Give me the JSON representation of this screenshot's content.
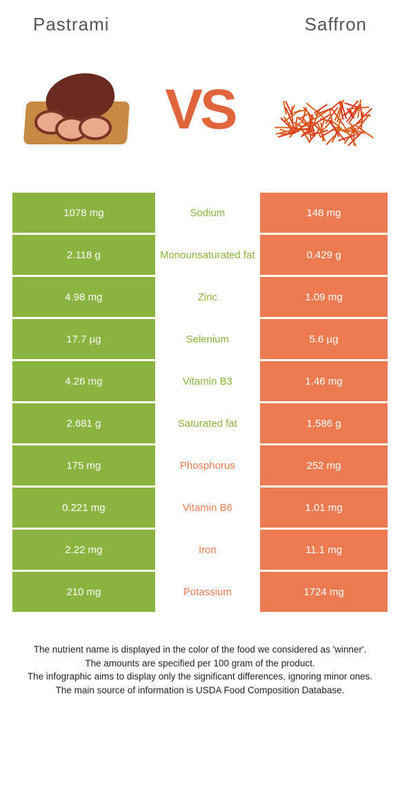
{
  "header": {
    "left": "Pastrami",
    "right": "Saffron"
  },
  "vs": "VS",
  "colors": {
    "left_bg": "#8bb33f",
    "right_bg": "#ed7b52",
    "mid_left_text": "#8bb33f",
    "mid_right_text": "#ed7b52"
  },
  "rows": [
    {
      "left": "1078 mg",
      "label": "Sodium",
      "right": "148 mg",
      "winner": "left"
    },
    {
      "left": "2.118 g",
      "label": "Monounsaturated fat",
      "right": "0.429 g",
      "winner": "left"
    },
    {
      "left": "4.98 mg",
      "label": "Zinc",
      "right": "1.09 mg",
      "winner": "left"
    },
    {
      "left": "17.7 µg",
      "label": "Selenium",
      "right": "5.6 µg",
      "winner": "left"
    },
    {
      "left": "4.26 mg",
      "label": "Vitamin B3",
      "right": "1.46 mg",
      "winner": "left"
    },
    {
      "left": "2.681 g",
      "label": "Saturated fat",
      "right": "1.586 g",
      "winner": "left"
    },
    {
      "left": "175 mg",
      "label": "Phosphorus",
      "right": "252 mg",
      "winner": "right"
    },
    {
      "left": "0.221 mg",
      "label": "Vitamin B6",
      "right": "1.01 mg",
      "winner": "right"
    },
    {
      "left": "2.22 mg",
      "label": "Iron",
      "right": "11.1 mg",
      "winner": "right"
    },
    {
      "left": "210 mg",
      "label": "Potassium",
      "right": "1724 mg",
      "winner": "right"
    }
  ],
  "footer": {
    "l1": "The nutrient name is displayed in the color of the food we considered as 'winner'.",
    "l2": "The amounts are specified per 100 gram of the product.",
    "l3": "The infographic aims to display only the significant differences, ignoring minor ones.",
    "l4": "The main source of information is USDA Food Composition Database."
  }
}
